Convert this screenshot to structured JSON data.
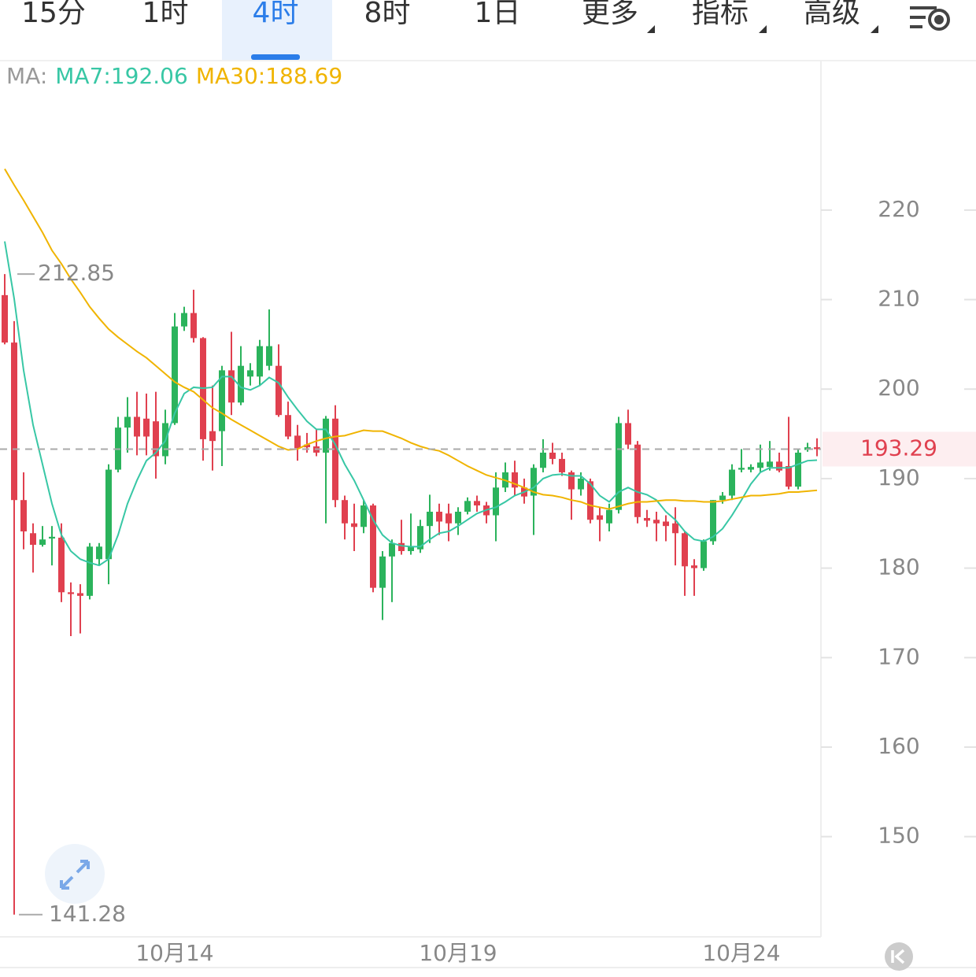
{
  "tabs": [
    "15分",
    "1时",
    "4时",
    "8时",
    "1日",
    "更多",
    "指标",
    "高级"
  ],
  "active_tab": "4时",
  "chart_data": {
    "type": "candlestick",
    "indicator_label": "MA:",
    "categories": [
      null,
      null,
      null,
      null,
      null,
      null,
      null,
      null,
      null,
      null,
      null,
      null,
      null,
      null,
      null,
      null,
      null,
      null,
      "10月14",
      null,
      null,
      null,
      null,
      null,
      null,
      null,
      null,
      null,
      null,
      null,
      null,
      null,
      null,
      null,
      null,
      null,
      null,
      null,
      null,
      null,
      null,
      null,
      null,
      null,
      null,
      null,
      null,
      null,
      "10月19",
      null,
      null,
      null,
      null,
      null,
      null,
      null,
      null,
      null,
      null,
      null,
      null,
      null,
      null,
      null,
      null,
      null,
      null,
      null,
      null,
      null,
      null,
      null,
      null,
      null,
      null,
      null,
      null,
      null,
      "10月24",
      null,
      null,
      null,
      null,
      null,
      null,
      null,
      null
    ],
    "open": [
      210.5,
      205.2,
      187.6,
      183.9,
      182.6,
      183.3,
      183.4,
      177.3,
      177.2,
      176.9,
      181.0,
      181.0,
      191.0,
      195.7,
      196.9,
      196.7,
      196.4,
      192.5,
      196.2,
      207.0,
      208.5,
      205.7,
      195.3,
      195.3,
      202.1,
      198.5,
      201.4,
      201.4,
      202.6,
      202.6,
      197.1,
      194.8,
      193.8,
      193.6,
      192.9,
      196.7,
      187.6,
      185.0,
      184.6,
      187.0,
      177.8,
      181.3,
      182.8,
      181.9,
      182.1,
      184.7,
      186.3,
      186.1,
      185.0,
      186.3,
      187.5,
      187.0,
      185.9,
      189.0,
      190.7,
      189.0,
      188.1,
      191.2,
      192.9,
      192.2,
      190.7,
      188.8,
      189.7,
      185.9,
      185.0,
      186.5,
      196.2,
      193.8,
      185.6,
      185.4,
      185.2,
      185.0,
      183.9,
      180.3,
      180.0,
      183.0,
      187.6,
      188.1,
      191.0,
      191.0,
      191.2,
      191.3,
      191.9,
      191.4,
      189.1,
      193.2,
      193.5
    ],
    "high": [
      212.85,
      207.6,
      190.7,
      185.0,
      184.7,
      184.7,
      185.0,
      178.4,
      178.2,
      182.8,
      182.8,
      191.6,
      196.9,
      199.1,
      199.7,
      199.5,
      199.7,
      197.7,
      208.5,
      209.2,
      211.1,
      205.8,
      200.4,
      202.6,
      206.4,
      204.8,
      202.9,
      205.5,
      208.9,
      205.0,
      198.6,
      196.0,
      195.1,
      195.5,
      197.0,
      198.2,
      188.1,
      187.2,
      187.6,
      187.2,
      181.9,
      183.2,
      185.4,
      186.1,
      185.4,
      188.2,
      187.2,
      187.2,
      186.8,
      187.9,
      188.1,
      187.4,
      190.7,
      191.8,
      192.0,
      190.0,
      191.6,
      194.4,
      194.0,
      192.9,
      190.9,
      190.7,
      190.0,
      186.8,
      187.2,
      196.9,
      197.7,
      194.2,
      186.5,
      186.3,
      185.9,
      186.8,
      184.1,
      181.0,
      183.2,
      187.6,
      188.5,
      191.6,
      193.3,
      191.6,
      193.8,
      194.2,
      192.9,
      196.9,
      193.3,
      194.0,
      194.5
    ],
    "low": [
      205.0,
      141.28,
      182.1,
      179.5,
      182.4,
      180.3,
      176.2,
      172.4,
      172.7,
      176.5,
      180.3,
      178.2,
      190.7,
      192.9,
      192.6,
      192.6,
      190.0,
      191.6,
      196.0,
      206.5,
      205.2,
      192.0,
      190.9,
      191.4,
      197.1,
      198.2,
      200.4,
      200.4,
      202.1,
      196.9,
      194.4,
      192.0,
      192.9,
      192.5,
      185.0,
      186.8,
      183.2,
      181.9,
      183.9,
      177.3,
      174.2,
      176.2,
      181.5,
      181.5,
      181.7,
      182.8,
      183.7,
      183.0,
      183.7,
      186.0,
      186.3,
      185.0,
      183.0,
      188.5,
      188.1,
      187.2,
      183.7,
      190.7,
      191.6,
      190.3,
      185.4,
      188.1,
      185.0,
      183.0,
      184.1,
      186.1,
      193.3,
      185.0,
      184.6,
      183.0,
      183.0,
      180.3,
      176.9,
      176.9,
      179.7,
      182.6,
      187.2,
      187.6,
      190.7,
      190.7,
      190.7,
      190.9,
      190.7,
      188.8,
      188.8,
      193.0,
      192.5
    ],
    "close": [
      205.2,
      187.6,
      184.1,
      182.6,
      183.2,
      183.5,
      177.3,
      177.1,
      176.9,
      182.4,
      182.4,
      191.0,
      195.7,
      196.9,
      194.7,
      194.7,
      192.5,
      196.2,
      207.0,
      208.5,
      205.7,
      194.4,
      194.2,
      202.1,
      198.5,
      202.6,
      202.1,
      204.8,
      204.8,
      197.1,
      194.7,
      193.4,
      193.5,
      192.9,
      196.7,
      187.6,
      185.0,
      184.6,
      187.0,
      177.8,
      181.3,
      182.8,
      181.9,
      182.4,
      184.7,
      186.3,
      185.2,
      185.0,
      186.3,
      187.5,
      187.0,
      185.9,
      189.0,
      190.7,
      189.0,
      188.0,
      191.2,
      192.9,
      192.2,
      190.7,
      188.8,
      190.0,
      185.4,
      185.4,
      186.5,
      196.2,
      193.8,
      185.7,
      185.3,
      185.0,
      184.7,
      183.9,
      180.2,
      180.0,
      183.0,
      187.6,
      188.1,
      191.0,
      191.2,
      191.3,
      191.8,
      191.9,
      190.9,
      189.1,
      192.9,
      193.5,
      193.29
    ],
    "up_color": "#2bb35c",
    "down_color": "#e0404f",
    "series": [
      {
        "name": "MA7:192.06",
        "color": "#38c7a5",
        "values": [
          216.5,
          210.1,
          202.1,
          196.0,
          191.6,
          187.2,
          183.7,
          181.9,
          181.0,
          180.6,
          180.3,
          181.0,
          183.7,
          187.2,
          189.8,
          192.0,
          192.9,
          194.2,
          197.3,
          199.5,
          200.2,
          200.1,
          200.2,
          201.4,
          201.4,
          200.2,
          199.9,
          200.4,
          201.3,
          200.7,
          199.1,
          197.7,
          196.4,
          195.5,
          195.5,
          193.8,
          191.6,
          189.8,
          187.6,
          185.4,
          183.7,
          182.8,
          182.5,
          182.4,
          182.4,
          183.2,
          183.9,
          184.1,
          184.7,
          185.4,
          186.1,
          186.5,
          186.8,
          187.4,
          188.1,
          188.5,
          189.0,
          190.0,
          190.4,
          190.5,
          190.3,
          190.3,
          189.4,
          188.1,
          187.4,
          188.5,
          189.0,
          188.5,
          188.2,
          187.6,
          186.3,
          185.4,
          184.1,
          183.2,
          183.0,
          183.5,
          184.4,
          185.9,
          187.6,
          189.4,
          190.7,
          191.2,
          191.2,
          191.2,
          191.6,
          192.0,
          192.06
        ]
      },
      {
        "name": "MA30:188.69",
        "color": "#f0b400",
        "values": [
          224.6,
          222.8,
          221.1,
          219.3,
          217.5,
          215.5,
          214.0,
          212.3,
          210.8,
          209.2,
          207.9,
          206.7,
          205.8,
          205.0,
          204.2,
          203.5,
          202.6,
          201.7,
          200.8,
          200.2,
          199.7,
          198.8,
          197.9,
          197.3,
          196.6,
          196.0,
          195.4,
          194.8,
          194.2,
          193.6,
          193.2,
          193.3,
          193.8,
          194.2,
          194.5,
          194.7,
          194.8,
          195.1,
          195.4,
          195.3,
          195.3,
          194.9,
          194.5,
          194.0,
          193.6,
          193.3,
          193.1,
          192.6,
          192.0,
          191.4,
          190.9,
          190.4,
          190.1,
          189.8,
          189.4,
          189.0,
          188.5,
          188.2,
          188.1,
          187.9,
          187.6,
          187.4,
          187.0,
          186.8,
          186.6,
          186.9,
          187.2,
          187.4,
          187.4,
          187.5,
          187.6,
          187.6,
          187.5,
          187.5,
          187.4,
          187.4,
          187.5,
          187.7,
          187.9,
          188.1,
          188.1,
          188.2,
          188.3,
          188.5,
          188.5,
          188.6,
          188.69
        ]
      }
    ],
    "ylim": [
      138.8,
      236.7
    ],
    "yticks": [
      150,
      160,
      170,
      180,
      190,
      200,
      210,
      220
    ]
  }
}
